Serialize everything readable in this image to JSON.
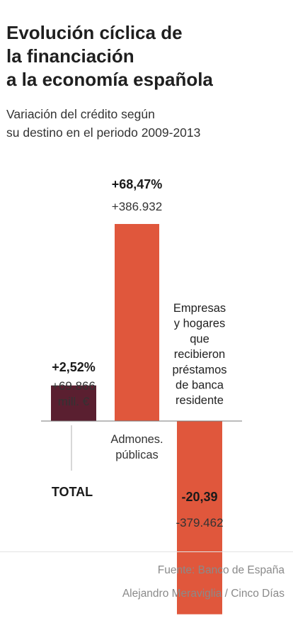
{
  "header": {
    "title_lines": [
      "Evolución cíclica de",
      "la financiación",
      "a la economía española"
    ],
    "subtitle_lines": [
      "Variación del crédito según",
      "su destino en el periodo 2009-2013"
    ]
  },
  "chart_data": {
    "type": "bar",
    "title": "Evolución cíclica de la financiación a la economía española",
    "subtitle": "Variación del crédito según su destino en el periodo 2009-2013",
    "unit": "mill. €",
    "categories": [
      {
        "label": "TOTAL",
        "pct": "+2,52%",
        "value": 69866,
        "value_label": "+69.866",
        "unit_label": "mill. €",
        "color": "#5a1f30"
      },
      {
        "label": "Admones. públicas",
        "label_lines": [
          "Admones.",
          "públicas"
        ],
        "pct": "+68,47%",
        "value": 386932,
        "value_label": "+386.932",
        "color": "#e0573c"
      },
      {
        "label": "Empresas y hogares que recibieron préstamos de banca residente",
        "label_lines": [
          "Empresas",
          "y hogares",
          "que",
          "recibieron",
          "préstamos",
          "de banca",
          "residente"
        ],
        "pct": "-20,39",
        "value": -379462,
        "value_label": "-379.462",
        "color": "#e0573c"
      }
    ],
    "values": [
      69866,
      386932,
      -379462
    ],
    "xlabel": "",
    "ylabel": "",
    "grid": false,
    "legend": "none"
  },
  "footer": {
    "source": "Fuente: Banco de España",
    "credit": "Alejandro Meraviglia / Cinco Días"
  }
}
